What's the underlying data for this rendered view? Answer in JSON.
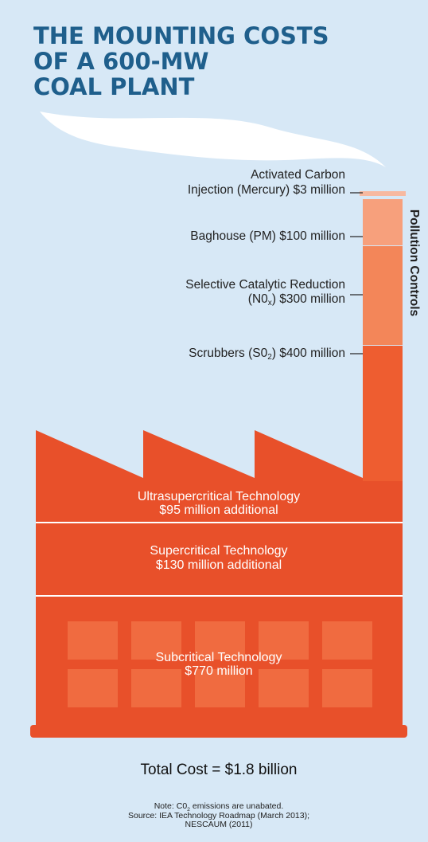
{
  "header": {
    "title_lines": [
      "THE MOUNTING COSTS",
      "OF A 600-MW",
      "COAL PLANT"
    ]
  },
  "pollution_controls": {
    "label": "Pollution Controls",
    "items": [
      {
        "lines": [
          {
            "text": "Activated Carbon"
          },
          {
            "text": "Injection (Mercury) $3 million"
          }
        ]
      },
      {
        "lines": [
          {
            "text": "Baghouse (PM) $100 million"
          }
        ]
      },
      {
        "lines": [
          {
            "text": "Selective Catalytic Reduction"
          },
          {
            "before": "(N0",
            "sub": "x",
            "after": ") $300 million"
          }
        ]
      },
      {
        "lines": [
          {
            "before": "Scrubbers (S0",
            "sub": "2",
            "after": ") $400 million"
          }
        ]
      }
    ]
  },
  "technologies": [
    {
      "name": "Ultrasupercritical Technology",
      "cost": "$95 million additional"
    },
    {
      "name": "Supercritical Technology",
      "cost": "$130 million additional"
    },
    {
      "name": "Subcritical Technology",
      "cost": "$770 million"
    }
  ],
  "total": "Total Cost = $1.8 billion",
  "notes": {
    "note": {
      "before": "Note: C0",
      "sub": "2",
      "after": " emissions are unabated."
    },
    "source_lines": [
      "Source: IEA Technology Roadmap (March 2013);",
      "NESCAUM (2011)"
    ]
  }
}
